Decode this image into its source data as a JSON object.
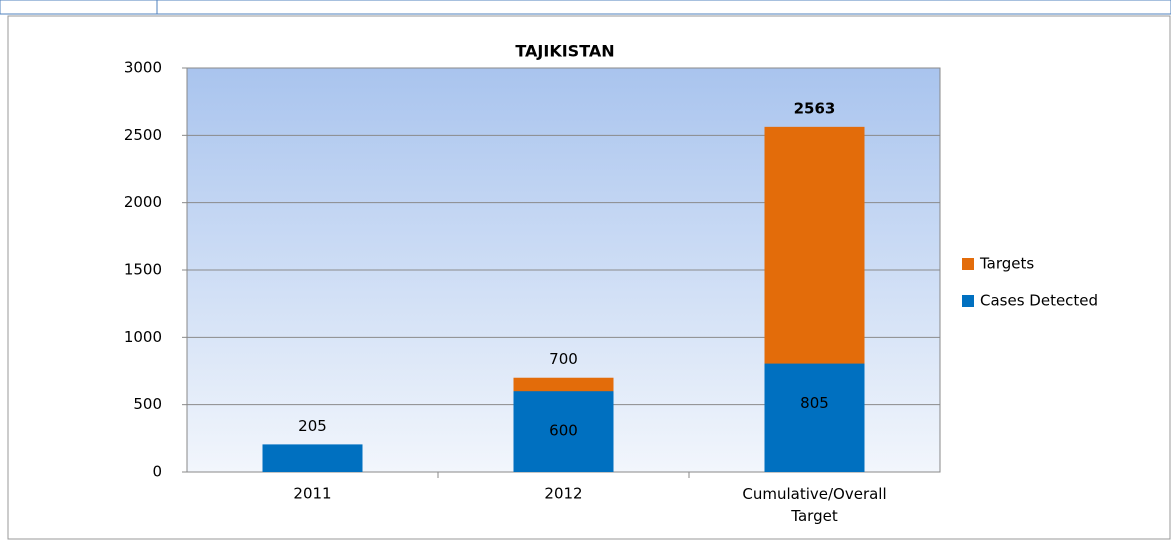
{
  "chart_data": {
    "type": "bar",
    "title": "TAJIKISTAN",
    "categories": [
      "2011",
      "2012",
      "Cumulative/Overall Target"
    ],
    "series": [
      {
        "name": "Targets",
        "color": "#e36c0a",
        "values": [
          null,
          700,
          2563
        ]
      },
      {
        "name": "Cases Detected",
        "color": "#0070c0",
        "values": [
          205,
          600,
          805
        ]
      }
    ],
    "ylim": [
      0,
      3000
    ],
    "yticks": [
      0,
      500,
      1000,
      1500,
      2000,
      2500,
      3000
    ],
    "grid": true,
    "legend": "right"
  }
}
